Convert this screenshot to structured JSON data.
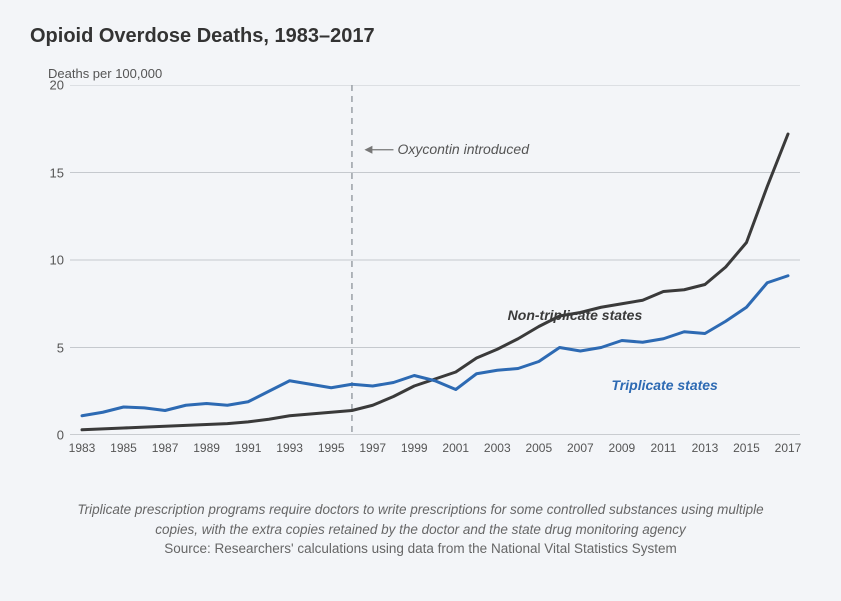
{
  "chart": {
    "title": "Opioid Overdose Deaths, 1983–2017",
    "y_axis_label": "Deaths per 100,000",
    "type": "line",
    "background_color": "#f3f5f8",
    "grid_color": "#c5c9ce",
    "axis_color": "#b0b4b9",
    "tick_color": "#b0b4b9",
    "title_color": "#333333",
    "text_color": "#555555",
    "title_fontsize": 20,
    "label_fontsize": 13,
    "tick_fontsize": 13,
    "ylim": [
      0,
      20
    ],
    "ytick_step": 5,
    "yticks": [
      0,
      5,
      10,
      15,
      20
    ],
    "xlim": [
      1983,
      2017
    ],
    "xtick_step": 2,
    "xticks": [
      1983,
      1985,
      1987,
      1989,
      1991,
      1993,
      1995,
      1997,
      1999,
      2001,
      2003,
      2005,
      2007,
      2009,
      2011,
      2013,
      2015,
      2017
    ],
    "x_values": [
      1983,
      1984,
      1985,
      1986,
      1987,
      1988,
      1989,
      1990,
      1991,
      1992,
      1993,
      1994,
      1995,
      1996,
      1997,
      1998,
      1999,
      2000,
      2001,
      2002,
      2003,
      2004,
      2005,
      2006,
      2007,
      2008,
      2009,
      2010,
      2011,
      2012,
      2013,
      2014,
      2015,
      2016,
      2017
    ],
    "vertical_line": {
      "x": 1996,
      "dash": "6,5",
      "color": "#9aa0a6",
      "width": 1.5
    },
    "annotation": {
      "text": "Oxycontin introduced",
      "arrow_from_x": 1998.0,
      "arrow_to_x": 1996.6,
      "y": 16.3,
      "color": "#777777"
    },
    "series": [
      {
        "name": "Non-triplicate states",
        "color": "#3a3a3a",
        "line_width": 3,
        "label_pos": {
          "x": 2003.5,
          "y": 7.3
        },
        "values": [
          0.3,
          0.35,
          0.4,
          0.45,
          0.5,
          0.55,
          0.6,
          0.65,
          0.75,
          0.9,
          1.1,
          1.2,
          1.3,
          1.4,
          1.7,
          2.2,
          2.8,
          3.2,
          3.6,
          4.4,
          4.9,
          5.5,
          6.2,
          6.8,
          7.0,
          7.3,
          7.5,
          7.7,
          8.2,
          8.3,
          8.6,
          9.6,
          11.0,
          14.2,
          17.2
        ]
      },
      {
        "name": "Triplicate states",
        "color": "#2d6ab3",
        "line_width": 3,
        "label_pos": {
          "x": 2008.5,
          "y": 3.3
        },
        "values": [
          1.1,
          1.3,
          1.6,
          1.55,
          1.4,
          1.7,
          1.8,
          1.7,
          1.9,
          2.5,
          3.1,
          2.9,
          2.7,
          2.9,
          2.8,
          3.0,
          3.4,
          3.1,
          2.6,
          3.5,
          3.7,
          3.8,
          4.2,
          5.0,
          4.8,
          5.0,
          5.4,
          5.3,
          5.5,
          5.9,
          5.8,
          6.5,
          7.3,
          8.7,
          9.1
        ]
      }
    ],
    "footnote": "Triplicate prescription programs require doctors to write prescriptions for some controlled substances using multiple copies, with the extra copies retained by the doctor and the state drug monitoring agency",
    "source": "Source: Researchers' calculations using data from the National Vital Statistics System"
  }
}
